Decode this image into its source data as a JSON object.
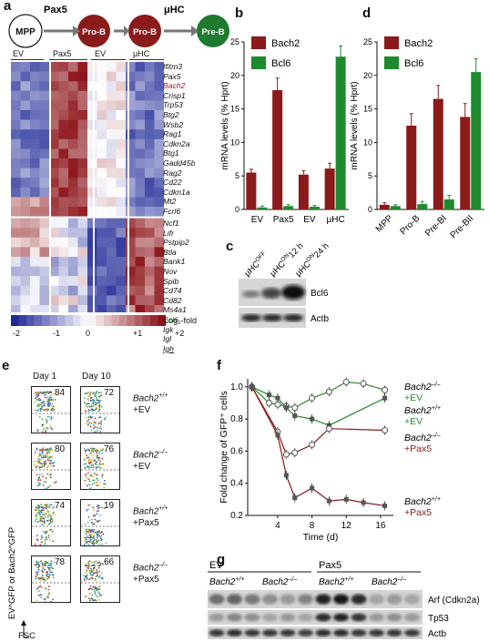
{
  "panel_labels": {
    "a": "a",
    "b": "b",
    "c": "c",
    "d": "d",
    "e": "e",
    "f": "f",
    "g": "g"
  },
  "panel_a": {
    "pax5_arrow_label": "Pax5",
    "uhc_arrow_label": "μHC",
    "nodes": [
      {
        "label": "MPP",
        "color": "#ffffff"
      },
      {
        "label": "Pro-B",
        "color": "#8b1a1a"
      },
      {
        "label": "Pro-B",
        "color": "#8b1a1a"
      },
      {
        "label": "Pre-B",
        "color": "#1e7a2e"
      }
    ],
    "column_headers": [
      "EV",
      "Pax5",
      "EV",
      "μHC"
    ],
    "genes_top": [
      "Ifitm3",
      "Pax5",
      "Bach2",
      "Crisp1",
      "Trp53",
      "Btg2",
      "Wsb2",
      "Rag1",
      "Cdkn2a",
      "Btg1",
      "Gadd45b",
      "Rag2",
      "Cd22",
      "Cdkn1a",
      "Mt2",
      "Fcrl6"
    ],
    "genes_bottom": [
      "Ncf1",
      "Lifr",
      "Pstpip2",
      "Btla",
      "Bank1",
      "Nov",
      "Spib",
      "Cd74",
      "Cd82",
      "Ms4a1",
      "Bcl6",
      "Igk",
      "Igl",
      "Igh"
    ],
    "highlight_red": "#a32020",
    "highlight_green": "#2a7a2a",
    "scale_label": "Log₂-fold",
    "scale_ticks": [
      "-2",
      "-1",
      "0",
      "+1",
      "+2"
    ]
  },
  "panel_b": {
    "ylabel": "mRNA levels (% Hprt)",
    "legend": [
      {
        "name": "Bach2",
        "color": "#8b1a1a"
      },
      {
        "name": "Bcl6",
        "color": "#1e8a2e"
      }
    ],
    "chart_data": {
      "type": "bar",
      "categories": [
        "EV",
        "Pax5",
        "EV",
        "μHC"
      ],
      "series": [
        {
          "name": "Bach2",
          "values": [
            5.5,
            17.8,
            5.2,
            6.1
          ],
          "err": [
            0.5,
            1.8,
            0.6,
            0.8
          ]
        },
        {
          "name": "Bcl6",
          "values": [
            0.3,
            0.5,
            0.4,
            22.8
          ],
          "err": [
            0.2,
            0.2,
            0.2,
            1.6
          ]
        }
      ],
      "ylim": [
        0,
        25
      ],
      "yticks": [
        "0",
        "5",
        "10",
        "15",
        "20",
        "25"
      ]
    }
  },
  "panel_c": {
    "lanes": [
      "μHC",
      "OFF",
      "μHC",
      "ON",
      "12 h",
      "μHC",
      "ON",
      "24 h"
    ],
    "bands": [
      "Bcl6",
      "Actb"
    ]
  },
  "panel_d": {
    "ylabel": "mRNA levels (% Hprt)",
    "legend": [
      {
        "name": "Bach2",
        "color": "#8b1a1a"
      },
      {
        "name": "Bcl6",
        "color": "#1e8a2e"
      }
    ],
    "chart_data": {
      "type": "bar",
      "categories": [
        "MPP",
        "Pro-B",
        "Pre-BI",
        "Pre-BII"
      ],
      "series": [
        {
          "name": "Bach2",
          "values": [
            0.7,
            12.5,
            16.5,
            13.8
          ],
          "err": [
            0.3,
            1.8,
            2.0,
            2.0
          ]
        },
        {
          "name": "Bcl6",
          "values": [
            0.5,
            0.8,
            1.5,
            20.5
          ],
          "err": [
            0.2,
            0.4,
            0.6,
            2.0
          ]
        }
      ],
      "ylim": [
        0,
        25
      ],
      "yticks": [
        "0",
        "5",
        "10",
        "15",
        "20",
        "25"
      ]
    }
  },
  "panel_e": {
    "col_headers": [
      "Day 1",
      "Day 10"
    ],
    "rows": [
      {
        "genotype": "Bach2",
        "sup": "+/+",
        "treat": "+EV",
        "d1": "84",
        "d10": "72"
      },
      {
        "genotype": "Bach2",
        "sup": "–/–",
        "treat": "+EV",
        "d1": "80",
        "d10": "76"
      },
      {
        "genotype": "Bach2",
        "sup": "+/+",
        "treat": "+Pax5",
        "d1": "74",
        "d10": "19"
      },
      {
        "genotype": "Bach2",
        "sup": "–/–",
        "treat": "+Pax5",
        "d1": "78",
        "d10": "66"
      }
    ],
    "yaxis_label": "EV^GFP or Bach2^GFP",
    "xaxis_label": "FSC"
  },
  "panel_f": {
    "ylabel": "Fold change of GFP⁺ cells",
    "xlabel": "Time (d)",
    "chart_data": {
      "type": "line",
      "x": [
        1,
        2,
        3,
        4,
        5,
        6,
        7,
        8,
        9,
        10,
        11,
        12,
        13,
        14,
        15,
        16,
        17
      ],
      "xticks": [
        "4",
        "8",
        "12",
        "16"
      ],
      "yticks": [
        "0.2",
        "0.4",
        "0.6",
        "0.8",
        "1.0"
      ],
      "ylim": [
        0.2,
        1.05
      ],
      "series": [
        {
          "name": "Bach2–/– +EV",
          "color": "#2a8a2a",
          "marker": "open",
          "x": [
            1,
            3,
            4,
            5,
            6,
            8,
            10,
            12,
            14,
            16.5
          ],
          "values": [
            1.0,
            0.9,
            0.89,
            0.88,
            0.87,
            0.93,
            0.97,
            1.03,
            1.02,
            0.98
          ]
        },
        {
          "name": "Bach2+/+ +EV",
          "color": "#2a8a2a",
          "marker": "filled",
          "x": [
            1,
            3,
            4,
            5,
            6,
            8,
            10,
            16.5
          ],
          "values": [
            1.0,
            0.95,
            0.93,
            0.87,
            0.82,
            0.8,
            0.76,
            0.93
          ]
        },
        {
          "name": "Bach2–/– +Pax5",
          "color": "#8b1a1a",
          "marker": "open",
          "x": [
            1,
            4,
            5,
            6,
            8,
            10,
            16.5
          ],
          "values": [
            1.0,
            0.72,
            0.58,
            0.59,
            0.64,
            0.74,
            0.73
          ]
        },
        {
          "name": "Bach2+/+ +Pax5",
          "color": "#8b1a1a",
          "marker": "filled",
          "x": [
            1,
            4,
            5,
            6,
            8,
            10,
            12,
            14,
            16.5
          ],
          "values": [
            1.0,
            0.7,
            0.45,
            0.31,
            0.37,
            0.29,
            0.3,
            0.28,
            0.26
          ]
        }
      ],
      "labels": [
        {
          "gene": "Bach2",
          "sup": "–/–",
          "treat": "+EV",
          "color": "#2a8a2a"
        },
        {
          "gene": "Bach2",
          "sup": "+/+",
          "treat": "+EV",
          "color": "#2a8a2a"
        },
        {
          "gene": "Bach2",
          "sup": "–/–",
          "treat": "+Pax5",
          "color": "#8b1a1a"
        },
        {
          "gene": "Bach2",
          "sup": "+/+",
          "treat": "+Pax5",
          "color": "#8b1a1a"
        }
      ]
    }
  },
  "panel_g": {
    "groups": [
      "EV",
      "Pax5"
    ],
    "sub": [
      {
        "g": "Bach2",
        "s": "+/+"
      },
      {
        "g": "Bach2",
        "s": "–/–"
      },
      {
        "g": "Bach2",
        "s": "+/+"
      },
      {
        "g": "Bach2",
        "s": "–/–"
      }
    ],
    "bands": [
      "Arf (Cdkn2a)",
      "Tp53",
      "Actb"
    ]
  }
}
